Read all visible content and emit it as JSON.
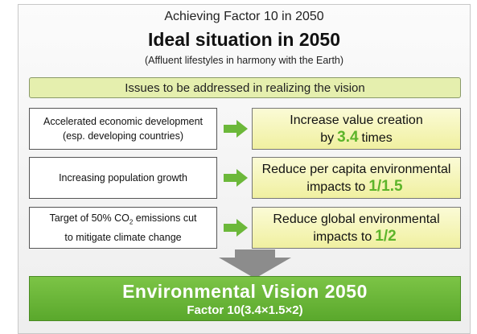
{
  "header": {
    "pretitle": "Achieving Factor 10 in 2050",
    "title": "Ideal situation in 2050",
    "subtitle": "(Affluent lifestyles in harmony with the Earth)"
  },
  "banner": "Issues to be addressed in realizing the vision",
  "rows": [
    {
      "issue": [
        "Accelerated economic development",
        "(esp. developing countries)"
      ],
      "goal": [
        "Increase value creation",
        "by",
        "3.4",
        "times"
      ]
    },
    {
      "issue": [
        "Increasing population growth"
      ],
      "goal": [
        "Reduce per capita environmental",
        "impacts to",
        "1/1.5"
      ]
    },
    {
      "issue": [
        "Target of 50% CO",
        "2",
        "emissions cut",
        "to mitigate climate change"
      ],
      "goal": [
        "Reduce global environmental",
        "impacts to",
        "1/2"
      ]
    }
  ],
  "vision": {
    "title": "Environmental Vision 2050",
    "subtitle": "Factor 10(3.4×1.5×2)"
  }
}
